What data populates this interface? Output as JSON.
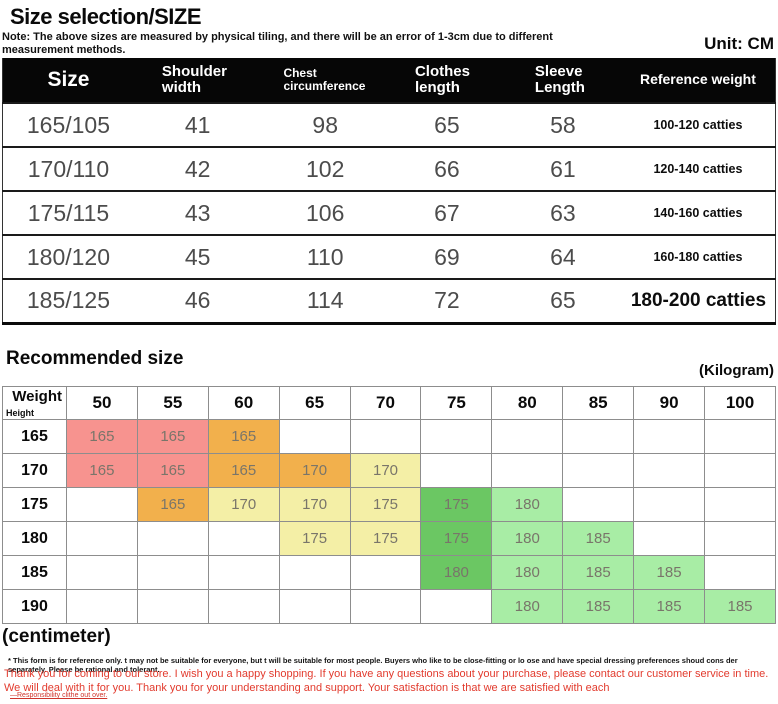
{
  "header": {
    "title": "Size selection/SIZE",
    "note": "Note: The above sizes are measured by physical tiling, and there will be an error of 1-3cm due to different measurement methods.",
    "unit_label": "Unit: CM"
  },
  "size_table": {
    "headers": [
      "Size",
      "Shoulder width",
      "Chest circumference",
      "Clothes length",
      "Sleeve Length",
      "Reference weight"
    ],
    "rows": [
      [
        "165/105",
        "41",
        "98",
        "65",
        "58",
        "100-120 catties"
      ],
      [
        "170/110",
        "42",
        "102",
        "66",
        "61",
        "120-140 catties"
      ],
      [
        "175/115",
        "43",
        "106",
        "67",
        "63",
        "140-160 catties"
      ],
      [
        "180/120",
        "45",
        "110",
        "69",
        "64",
        "160-180 catties"
      ],
      [
        "185/125",
        "46",
        "114",
        "72",
        "65",
        "180-200 catties"
      ]
    ]
  },
  "recommended": {
    "heading": "Recommended size",
    "weight_unit": "(Kilogram)",
    "height_unit": "(centimeter)",
    "corner_top": "Weight",
    "corner_bottom": "Height",
    "weights": [
      "50",
      "55",
      "60",
      "65",
      "70",
      "75",
      "80",
      "85",
      "90",
      "100"
    ],
    "rows": [
      {
        "height": "165",
        "cells": [
          {
            "v": "165",
            "c": "pink"
          },
          {
            "v": "165",
            "c": "pink"
          },
          {
            "v": "165",
            "c": "orange"
          },
          {
            "v": "",
            "c": ""
          },
          {
            "v": "",
            "c": ""
          },
          {
            "v": "",
            "c": ""
          },
          {
            "v": "",
            "c": ""
          },
          {
            "v": "",
            "c": ""
          },
          {
            "v": "",
            "c": ""
          },
          {
            "v": "",
            "c": ""
          }
        ]
      },
      {
        "height": "170",
        "cells": [
          {
            "v": "165",
            "c": "pink"
          },
          {
            "v": "165",
            "c": "pink"
          },
          {
            "v": "165",
            "c": "orange"
          },
          {
            "v": "170",
            "c": "orange"
          },
          {
            "v": "170",
            "c": "yellow"
          },
          {
            "v": "",
            "c": ""
          },
          {
            "v": "",
            "c": ""
          },
          {
            "v": "",
            "c": ""
          },
          {
            "v": "",
            "c": ""
          },
          {
            "v": "",
            "c": ""
          }
        ]
      },
      {
        "height": "175",
        "cells": [
          {
            "v": "",
            "c": ""
          },
          {
            "v": "165",
            "c": "orange"
          },
          {
            "v": "170",
            "c": "yellow"
          },
          {
            "v": "170",
            "c": "yellow"
          },
          {
            "v": "175",
            "c": "yellow"
          },
          {
            "v": "175",
            "c": "green"
          },
          {
            "v": "180",
            "c": "lightgreen"
          },
          {
            "v": "",
            "c": ""
          },
          {
            "v": "",
            "c": ""
          },
          {
            "v": "",
            "c": ""
          }
        ]
      },
      {
        "height": "180",
        "cells": [
          {
            "v": "",
            "c": ""
          },
          {
            "v": "",
            "c": ""
          },
          {
            "v": "",
            "c": ""
          },
          {
            "v": "175",
            "c": "yellow"
          },
          {
            "v": "175",
            "c": "yellow"
          },
          {
            "v": "175",
            "c": "green"
          },
          {
            "v": "180",
            "c": "lightgreen"
          },
          {
            "v": "185",
            "c": "lightgreen"
          },
          {
            "v": "",
            "c": ""
          },
          {
            "v": "",
            "c": ""
          }
        ]
      },
      {
        "height": "185",
        "cells": [
          {
            "v": "",
            "c": ""
          },
          {
            "v": "",
            "c": ""
          },
          {
            "v": "",
            "c": ""
          },
          {
            "v": "",
            "c": ""
          },
          {
            "v": "",
            "c": ""
          },
          {
            "v": "180",
            "c": "green"
          },
          {
            "v": "180",
            "c": "lightgreen"
          },
          {
            "v": "185",
            "c": "lightgreen"
          },
          {
            "v": "185",
            "c": "lightgreen"
          },
          {
            "v": "",
            "c": ""
          }
        ]
      },
      {
        "height": "190",
        "cells": [
          {
            "v": "",
            "c": ""
          },
          {
            "v": "",
            "c": ""
          },
          {
            "v": "",
            "c": ""
          },
          {
            "v": "",
            "c": ""
          },
          {
            "v": "",
            "c": ""
          },
          {
            "v": "",
            "c": ""
          },
          {
            "v": "180",
            "c": "lightgreen"
          },
          {
            "v": "185",
            "c": "lightgreen"
          },
          {
            "v": "185",
            "c": "lightgreen"
          },
          {
            "v": "185",
            "c": "lightgreen"
          }
        ]
      }
    ]
  },
  "colors": {
    "pink": "#f7938f",
    "orange": "#f2b04c",
    "yellow": "#f4efa6",
    "green": "#6bc763",
    "lightgreen": "#a8eda5"
  },
  "footer": {
    "footnote": "* This form is for reference only. t may not be suitable for everyone, but t will be suitable for most people. Buyers who like to be close-fitting or lo ose and have special dressing preferences shoud cons der separately. Please be rational and tolerant.",
    "thanks": "Thank you for coming to our store. I wish you a happy shopping. If you have any questions about your purchase, please contact our customer service in time. We will deal with it for you. Thank you for your understanding and support. Your satisfaction is that we are satisfied with each",
    "tiny_note": "—Responsibility clithe out over."
  }
}
